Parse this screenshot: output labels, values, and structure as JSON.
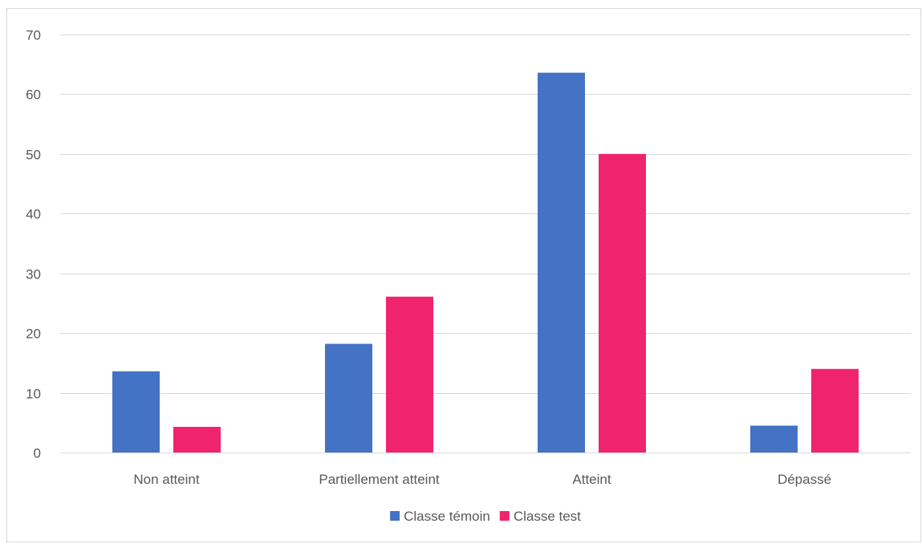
{
  "chart_data": {
    "type": "bar",
    "categories": [
      "Non atteint",
      "Partiellement atteint",
      "Atteint",
      "Dépassé"
    ],
    "series": [
      {
        "name": "Classe témoin",
        "color": "#4472C4",
        "values": [
          13.6,
          18.2,
          63.6,
          4.5
        ]
      },
      {
        "name": "Classe test",
        "color": "#F0246E",
        "values": [
          4.3,
          26.1,
          50.0,
          14.0
        ]
      }
    ],
    "title": "",
    "xlabel": "",
    "ylabel": "",
    "ylim": [
      0,
      70
    ],
    "yticks": [
      0,
      10,
      20,
      30,
      40,
      50,
      60,
      70
    ],
    "grid": true,
    "legend_position": "bottom"
  }
}
